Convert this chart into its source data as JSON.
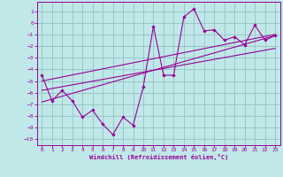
{
  "title": "",
  "xlabel": "Windchill (Refroidissement éolien,°C)",
  "bg_color": "#c0e8e8",
  "grid_color": "#98c8c8",
  "line_color": "#990099",
  "xlim": [
    -0.5,
    23.5
  ],
  "ylim": [
    -10.5,
    1.8
  ],
  "xticks": [
    0,
    1,
    2,
    3,
    4,
    5,
    6,
    7,
    8,
    9,
    10,
    11,
    12,
    13,
    14,
    15,
    16,
    17,
    18,
    19,
    20,
    21,
    22,
    23
  ],
  "yticks": [
    1,
    0,
    -1,
    -2,
    -3,
    -4,
    -5,
    -6,
    -7,
    -8,
    -9,
    -10
  ],
  "data_x": [
    0,
    1,
    2,
    3,
    4,
    5,
    6,
    7,
    8,
    9,
    10,
    11,
    12,
    13,
    14,
    15,
    16,
    17,
    18,
    19,
    20,
    21,
    22,
    23
  ],
  "data_y": [
    -4.5,
    -6.7,
    -5.8,
    -6.7,
    -8.1,
    -7.5,
    -8.7,
    -9.6,
    -8.1,
    -8.8,
    -5.5,
    -0.3,
    -4.5,
    -4.5,
    0.5,
    1.2,
    -0.7,
    -0.6,
    -1.5,
    -1.2,
    -1.9,
    -0.2,
    -1.5,
    -1.1
  ],
  "line1_x": [
    0,
    23
  ],
  "line1_y": [
    -6.8,
    -1.1
  ],
  "line2_x": [
    0,
    23
  ],
  "line2_y": [
    -5.8,
    -2.2
  ],
  "line3_x": [
    0,
    23
  ],
  "line3_y": [
    -5.0,
    -1.0
  ]
}
